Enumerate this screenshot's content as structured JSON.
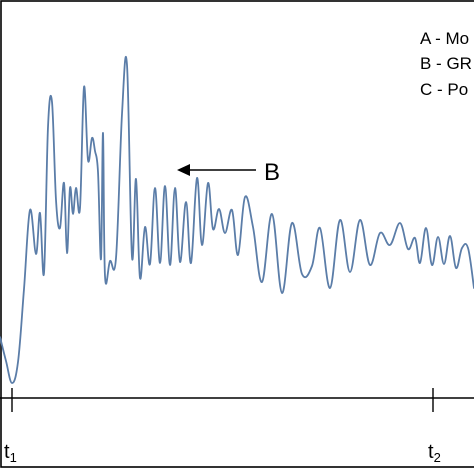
{
  "chart_data": {
    "type": "line",
    "title": "",
    "xlabel": "",
    "ylabel": "",
    "grid": false,
    "legend_position": "top-right",
    "legend": [
      "A - Mo",
      "B - GR",
      "C - Po"
    ],
    "series": [
      {
        "color": "#5B7DA8",
        "x": [
          0,
          6,
          12,
          18,
          24,
          30,
          36,
          40,
          44,
          48,
          52,
          56,
          60,
          64,
          67,
          70,
          73,
          76,
          80,
          84,
          88,
          92,
          95,
          98,
          101,
          103,
          105,
          110,
          116,
          122,
          127,
          132,
          136,
          140,
          145,
          150,
          155,
          160,
          165,
          170,
          175,
          180,
          186,
          191,
          197,
          202,
          208,
          213,
          219,
          225,
          232,
          238,
          245,
          253,
          262,
          272,
          282,
          292,
          302,
          312,
          320,
          330,
          340,
          350,
          360,
          370,
          380,
          390,
          400,
          408,
          415,
          420,
          426,
          432,
          438,
          444,
          450,
          456,
          462,
          468,
          474
        ],
        "y": [
          61,
          37,
          15,
          36,
          109,
          188,
          144,
          185,
          125,
          271,
          296,
          198,
          170,
          215,
          145,
          210,
          184,
          210,
          190,
          311,
          238,
          260,
          247,
          226,
          139,
          265,
          122,
          137,
          140,
          284,
          333,
          141,
          219,
          120,
          171,
          134,
          210,
          135,
          212,
          133,
          210,
          136,
          196,
          135,
          220,
          153,
          215,
          169,
          189,
          165,
          188,
          143,
          201,
          171,
          116,
          184,
          105,
          175,
          124,
          132,
          170,
          110,
          178,
          126,
          178,
          133,
          165,
          153,
          175,
          149,
          160,
          135,
          170,
          133,
          161,
          134,
          162,
          130,
          150,
          150,
          110
        ]
      }
    ],
    "annotations": [
      {
        "label": "B",
        "type": "arrow"
      }
    ],
    "x_ticks": [
      {
        "main": "t",
        "sub": "1"
      },
      {
        "main": "t",
        "sub": "2"
      }
    ]
  }
}
